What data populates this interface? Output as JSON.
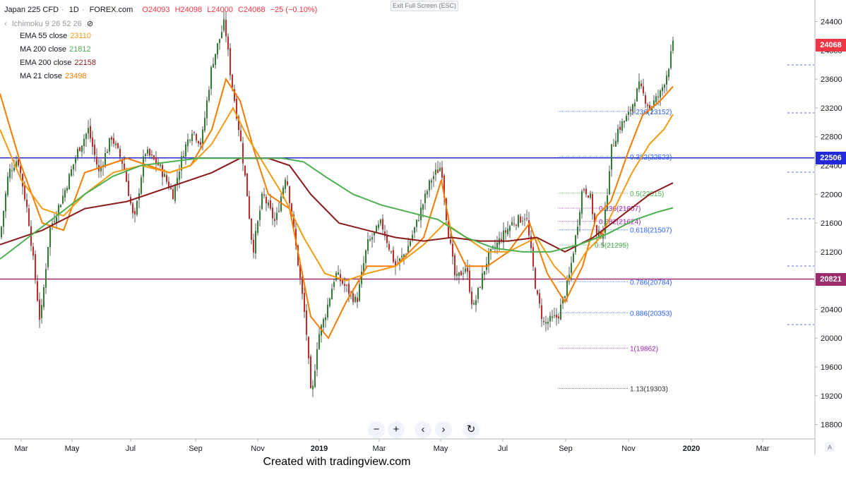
{
  "header": {
    "symbol": "Japan 225 CFD",
    "interval": "1D",
    "source": "FOREX.com",
    "open": "O24093",
    "high": "H24098",
    "low": "L24000",
    "close": "C24068",
    "change": "−25 (−0.10%)"
  },
  "ichimoku_label": "Ichimoku 9 26 52 26",
  "indicators": [
    {
      "name": "EMA 55 close",
      "value": "23110",
      "color": "#f39c12"
    },
    {
      "name": "MA 200 close",
      "value": "21812",
      "color": "#4caf50"
    },
    {
      "name": "EMA 200 close",
      "value": "22158",
      "color": "#8b1a1a"
    },
    {
      "name": "MA 21 close",
      "value": "23498",
      "color": "#f57c00"
    }
  ],
  "exit_fullscreen_label": "Exit Full Screen (ESC)",
  "nav_buttons": [
    {
      "name": "zoom-out",
      "glyph": "−"
    },
    {
      "name": "zoom-in",
      "glyph": "+"
    },
    {
      "name": "scroll-left",
      "glyph": "‹"
    },
    {
      "name": "scroll-right",
      "glyph": "›"
    },
    {
      "name": "reset",
      "glyph": "↻"
    }
  ],
  "footer": "Created with tradingview.com",
  "price_tags": [
    {
      "value": "24068",
      "color": "#f23645"
    },
    {
      "value": "22506",
      "color": "#2129d8"
    },
    {
      "value": "20821",
      "color": "#9c2c6b"
    }
  ],
  "chart_data": {
    "type": "candlestick",
    "y_ticks": [
      18800,
      19200,
      19600,
      20000,
      20400,
      20800,
      21200,
      21600,
      22000,
      22400,
      22800,
      23200,
      23600,
      24000,
      24400
    ],
    "ylim": [
      18600,
      24700
    ],
    "x_ticks": [
      "Mar",
      "May",
      "Jul",
      "Sep",
      "Nov",
      "2019",
      "Mar",
      "May",
      "Jul",
      "Sep",
      "Nov",
      "2020",
      "Mar"
    ],
    "horizontal_levels": [
      {
        "value": 22506,
        "color": "#2129d8"
      },
      {
        "value": 20821,
        "color": "#9c2c6b"
      }
    ],
    "fibonacci": [
      {
        "label": "0.236(23152)",
        "value": 23152,
        "color": "#2962ff"
      },
      {
        "label": "0.382(22523)",
        "value": 22523,
        "color": "#2962ff"
      },
      {
        "label": "0.5(22015)",
        "value": 22015,
        "color": "#4caf50"
      },
      {
        "label": "0.236(21807)",
        "value": 21807,
        "color": "#9c27b0"
      },
      {
        "label": "0.382(21624)",
        "value": 21624,
        "color": "#9c27b0"
      },
      {
        "label": "0.618(21507)",
        "value": 21507,
        "color": "#2962ff"
      },
      {
        "label": "0.5(21295)",
        "value": 21295,
        "color": "#4caf50"
      },
      {
        "label": "0.786(20784)",
        "value": 20784,
        "color": "#2962ff"
      },
      {
        "label": "0.886(20353)",
        "value": 20353,
        "color": "#2962ff"
      },
      {
        "label": "1(19862)",
        "value": 19862,
        "color": "#9c27b0"
      },
      {
        "label": "1.13(19303)",
        "value": 19303,
        "color": "#333333"
      }
    ],
    "price_path": [
      [
        0,
        21400
      ],
      [
        12,
        22300
      ],
      [
        25,
        22500
      ],
      [
        40,
        21700
      ],
      [
        57,
        20200
      ],
      [
        70,
        21500
      ],
      [
        90,
        22000
      ],
      [
        110,
        22600
      ],
      [
        125,
        22900
      ],
      [
        140,
        22300
      ],
      [
        158,
        22800
      ],
      [
        175,
        22400
      ],
      [
        190,
        21600
      ],
      [
        205,
        22600
      ],
      [
        225,
        22400
      ],
      [
        245,
        22000
      ],
      [
        260,
        22600
      ],
      [
        272,
        22900
      ],
      [
        285,
        22700
      ],
      [
        300,
        23800
      ],
      [
        318,
        24400
      ],
      [
        326,
        23700
      ],
      [
        340,
        22800
      ],
      [
        350,
        22000
      ],
      [
        358,
        21200
      ],
      [
        372,
        22000
      ],
      [
        390,
        21600
      ],
      [
        405,
        22300
      ],
      [
        420,
        21200
      ],
      [
        433,
        20200
      ],
      [
        441,
        19100
      ],
      [
        450,
        20000
      ],
      [
        460,
        20300
      ],
      [
        475,
        20900
      ],
      [
        490,
        20700
      ],
      [
        505,
        20500
      ],
      [
        520,
        21300
      ],
      [
        540,
        21600
      ],
      [
        560,
        21000
      ],
      [
        575,
        21200
      ],
      [
        590,
        21600
      ],
      [
        610,
        22200
      ],
      [
        625,
        22400
      ],
      [
        633,
        21600
      ],
      [
        645,
        20800
      ],
      [
        660,
        21000
      ],
      [
        670,
        20400
      ],
      [
        690,
        21100
      ],
      [
        710,
        21400
      ],
      [
        725,
        21600
      ],
      [
        745,
        21700
      ],
      [
        760,
        20600
      ],
      [
        770,
        20200
      ],
      [
        790,
        20300
      ],
      [
        805,
        20800
      ],
      [
        815,
        21400
      ],
      [
        825,
        22100
      ],
      [
        835,
        22000
      ],
      [
        845,
        21400
      ],
      [
        855,
        21500
      ],
      [
        865,
        22600
      ],
      [
        875,
        22900
      ],
      [
        890,
        23100
      ],
      [
        905,
        23500
      ],
      [
        920,
        23200
      ],
      [
        935,
        23400
      ],
      [
        945,
        23700
      ],
      [
        953,
        24068
      ]
    ],
    "ma_lines": [
      {
        "name": "MA 21 close",
        "color": "#f57c00",
        "points": [
          [
            0,
            23400
          ],
          [
            30,
            22400
          ],
          [
            60,
            21600
          ],
          [
            90,
            21500
          ],
          [
            120,
            22300
          ],
          [
            150,
            22400
          ],
          [
            180,
            22500
          ],
          [
            210,
            22400
          ],
          [
            240,
            22300
          ],
          [
            270,
            22400
          ],
          [
            300,
            22900
          ],
          [
            320,
            23600
          ],
          [
            340,
            23300
          ],
          [
            360,
            22600
          ],
          [
            380,
            22000
          ],
          [
            410,
            21800
          ],
          [
            440,
            20300
          ],
          [
            465,
            20000
          ],
          [
            490,
            20500
          ],
          [
            520,
            21000
          ],
          [
            560,
            21000
          ],
          [
            600,
            21400
          ],
          [
            625,
            22200
          ],
          [
            640,
            21400
          ],
          [
            660,
            21000
          ],
          [
            690,
            21000
          ],
          [
            720,
            21200
          ],
          [
            750,
            21600
          ],
          [
            775,
            20900
          ],
          [
            800,
            20500
          ],
          [
            825,
            21000
          ],
          [
            845,
            21700
          ],
          [
            865,
            21900
          ],
          [
            890,
            22600
          ],
          [
            910,
            23100
          ],
          [
            935,
            23300
          ],
          [
            953,
            23498
          ]
        ]
      },
      {
        "name": "EMA 55 close",
        "color": "#f39c12",
        "points": [
          [
            0,
            22900
          ],
          [
            30,
            22200
          ],
          [
            60,
            21800
          ],
          [
            90,
            21700
          ],
          [
            120,
            22000
          ],
          [
            160,
            22300
          ],
          [
            200,
            22400
          ],
          [
            240,
            22300
          ],
          [
            270,
            22400
          ],
          [
            300,
            22700
          ],
          [
            330,
            23200
          ],
          [
            350,
            22800
          ],
          [
            375,
            22400
          ],
          [
            400,
            22000
          ],
          [
            430,
            21400
          ],
          [
            460,
            20900
          ],
          [
            490,
            20800
          ],
          [
            520,
            20900
          ],
          [
            560,
            21000
          ],
          [
            600,
            21300
          ],
          [
            630,
            21600
          ],
          [
            660,
            21400
          ],
          [
            690,
            21200
          ],
          [
            720,
            21200
          ],
          [
            760,
            21400
          ],
          [
            785,
            21000
          ],
          [
            805,
            20800
          ],
          [
            830,
            21200
          ],
          [
            850,
            21400
          ],
          [
            870,
            21800
          ],
          [
            895,
            22300
          ],
          [
            920,
            22700
          ],
          [
            940,
            22900
          ],
          [
            953,
            23110
          ]
        ]
      },
      {
        "name": "EMA 200 close",
        "color": "#8b1a1a",
        "points": [
          [
            0,
            21300
          ],
          [
            60,
            21500
          ],
          [
            120,
            21800
          ],
          [
            180,
            21900
          ],
          [
            240,
            22100
          ],
          [
            300,
            22300
          ],
          [
            340,
            22500
          ],
          [
            380,
            22500
          ],
          [
            410,
            22400
          ],
          [
            440,
            22000
          ],
          [
            480,
            21600
          ],
          [
            520,
            21500
          ],
          [
            560,
            21400
          ],
          [
            600,
            21350
          ],
          [
            640,
            21400
          ],
          [
            680,
            21350
          ],
          [
            720,
            21350
          ],
          [
            760,
            21400
          ],
          [
            800,
            21200
          ],
          [
            840,
            21400
          ],
          [
            880,
            21700
          ],
          [
            920,
            22000
          ],
          [
            953,
            22158
          ]
        ]
      },
      {
        "name": "MA 200 close",
        "color": "#4caf50",
        "points": [
          [
            0,
            21100
          ],
          [
            40,
            21400
          ],
          [
            80,
            21700
          ],
          [
            120,
            22000
          ],
          [
            160,
            22250
          ],
          [
            200,
            22400
          ],
          [
            240,
            22450
          ],
          [
            280,
            22500
          ],
          [
            320,
            22500
          ],
          [
            360,
            22500
          ],
          [
            400,
            22500
          ],
          [
            430,
            22450
          ],
          [
            460,
            22250
          ],
          [
            500,
            22000
          ],
          [
            540,
            21850
          ],
          [
            580,
            21750
          ],
          [
            620,
            21650
          ],
          [
            660,
            21400
          ],
          [
            700,
            21250
          ],
          [
            740,
            21200
          ],
          [
            780,
            21200
          ],
          [
            820,
            21300
          ],
          [
            860,
            21450
          ],
          [
            900,
            21650
          ],
          [
            930,
            21750
          ],
          [
            953,
            21812
          ]
        ]
      }
    ]
  }
}
